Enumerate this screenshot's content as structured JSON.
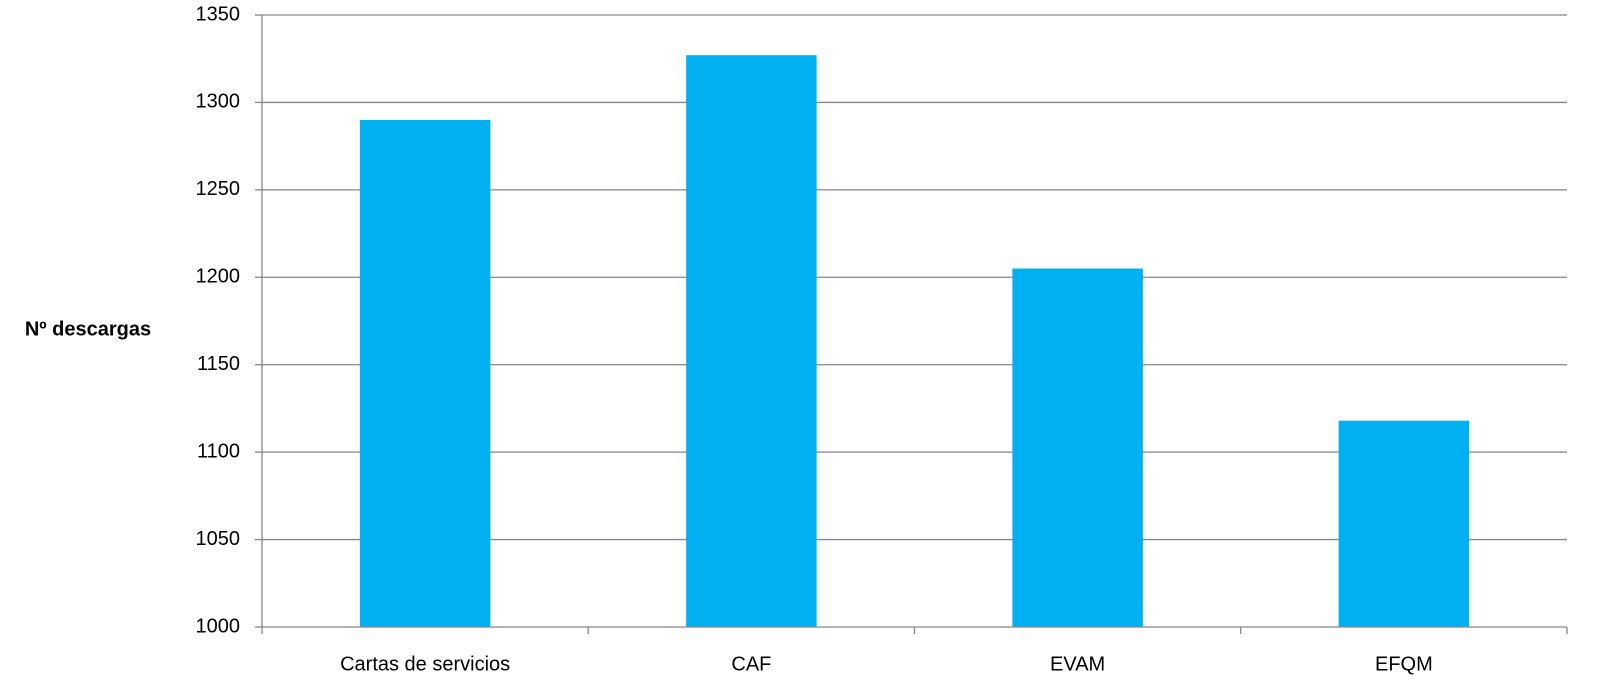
{
  "chart_data": {
    "type": "bar",
    "title": "",
    "xlabel": "",
    "ylabel": "Nº descargas",
    "categories": [
      "Cartas de servicios",
      "CAF",
      "EVAM",
      "EFQM"
    ],
    "series": [
      {
        "values": [
          1290,
          1327,
          1205,
          1118
        ],
        "color": "#00B0F0"
      }
    ],
    "ylim": [
      1000,
      1350
    ],
    "yticks": [
      1000,
      1050,
      1100,
      1150,
      1200,
      1250,
      1300,
      1350
    ],
    "grid": true,
    "legend": "none"
  }
}
